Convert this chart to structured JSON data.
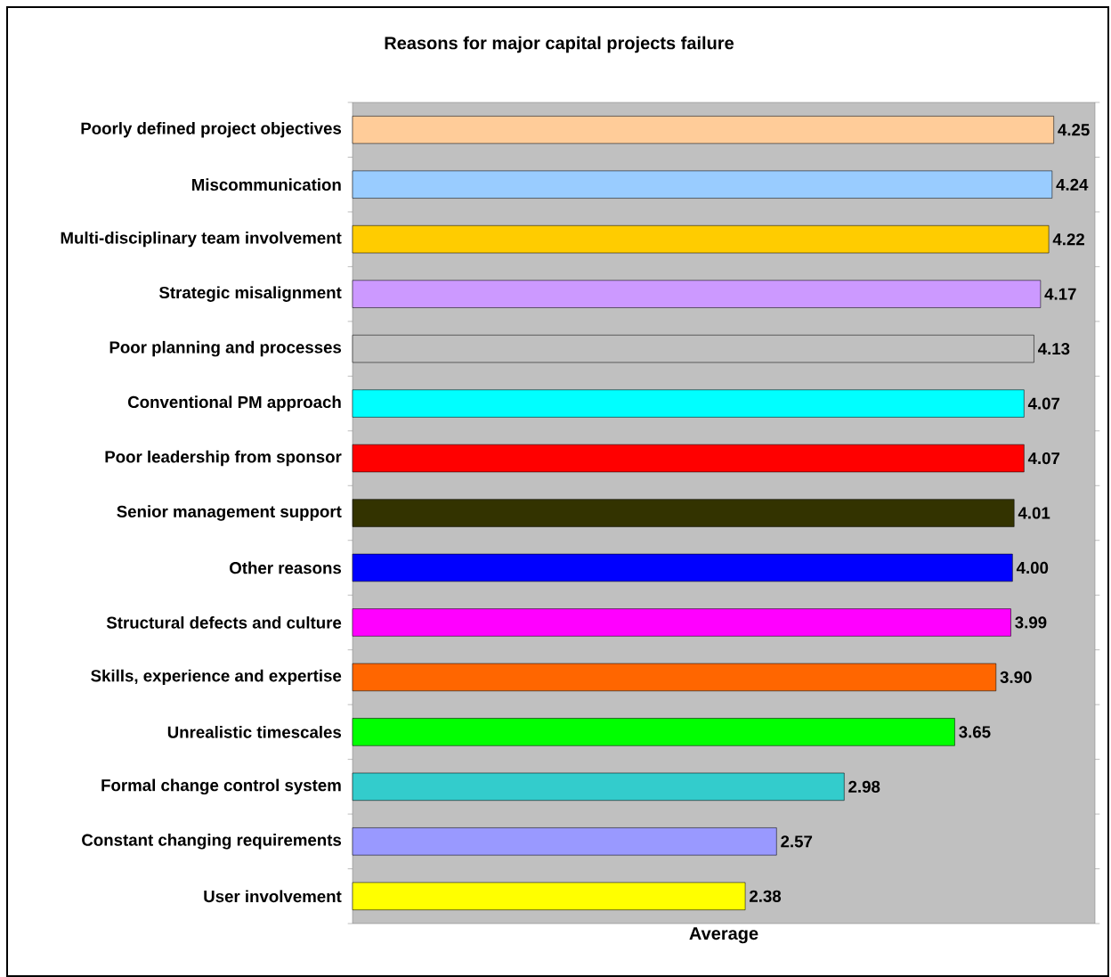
{
  "chart_data": {
    "type": "bar",
    "orientation": "horizontal",
    "title": "Reasons for major capital projects failure",
    "xlabel": "Average",
    "categories": [
      "Poorly defined project objectives",
      "Miscommunication",
      "Multi-disciplinary team involvement",
      "Strategic misalignment",
      "Poor planning and processes",
      "Conventional PM approach",
      "Poor leadership from sponsor",
      "Senior management support",
      "Other reasons",
      "Structural defects and culture",
      "Skills, experience and expertise",
      "Unrealistic timescales",
      "Formal change control system",
      "Constant changing requirements",
      "User involvement"
    ],
    "values": [
      4.25,
      4.24,
      4.22,
      4.17,
      4.13,
      4.07,
      4.07,
      4.01,
      4.0,
      3.99,
      3.9,
      3.65,
      2.98,
      2.57,
      2.38
    ],
    "colors": [
      "#ffcc99",
      "#99ccff",
      "#ffcc00",
      "#cc99ff",
      "#c0c0c0",
      "#00ffff",
      "#ff0000",
      "#333300",
      "#0000ff",
      "#ff00ff",
      "#ff6600",
      "#00ff00",
      "#33cccc",
      "#9999ff",
      "#ffff00"
    ],
    "value_labels": [
      "4.25",
      "4.24",
      "4.22",
      "4.17",
      "4.13",
      "4.07",
      "4.07",
      "4.01",
      "4.00",
      "3.99",
      "3.90",
      "3.65",
      "2.98",
      "2.57",
      "2.38"
    ],
    "xlim": [
      0,
      4.5
    ]
  }
}
